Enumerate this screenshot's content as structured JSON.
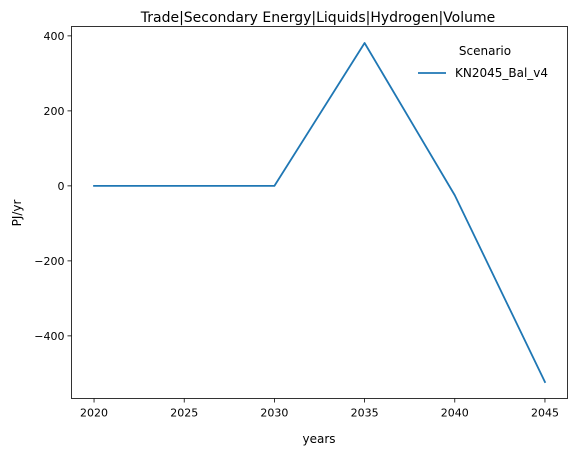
{
  "chart_data": {
    "type": "line",
    "title": "Trade|Secondary Energy|Liquids|Hydrogen|Volume",
    "xlabel": "years",
    "ylabel": "PJ/yr",
    "x": [
      2020,
      2025,
      2030,
      2035,
      2040,
      2045
    ],
    "xticks": [
      "2020",
      "2025",
      "2030",
      "2035",
      "2040",
      "2045"
    ],
    "yticks": [
      400,
      200,
      0,
      -200,
      -400
    ],
    "ytick_labels": [
      "400",
      "200",
      "0",
      "−200",
      "−400"
    ],
    "xlim": [
      2018.75,
      2046.25
    ],
    "ylim": [
      -567,
      425
    ],
    "grid": false,
    "legend": {
      "title": "Scenario",
      "placement": "top-right"
    },
    "series": [
      {
        "name": "KN2045_Bal_v4",
        "color": "#1f77b4",
        "values": [
          0,
          0,
          0,
          381,
          -25,
          -523
        ]
      }
    ]
  }
}
